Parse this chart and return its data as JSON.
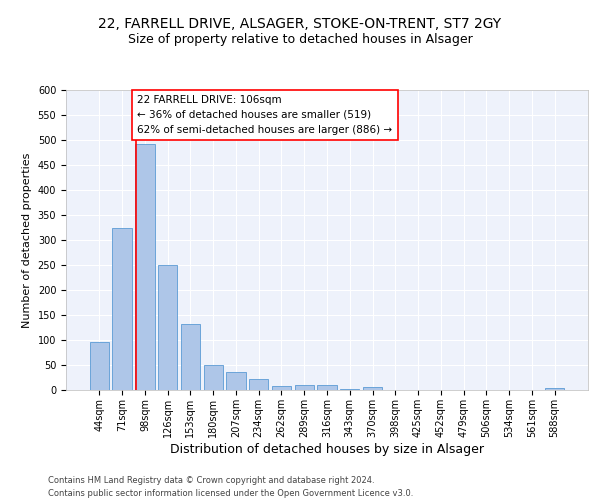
{
  "title1": "22, FARRELL DRIVE, ALSAGER, STOKE-ON-TRENT, ST7 2GY",
  "title2": "Size of property relative to detached houses in Alsager",
  "xlabel": "Distribution of detached houses by size in Alsager",
  "ylabel": "Number of detached properties",
  "footnote": "Contains HM Land Registry data © Crown copyright and database right 2024.\nContains public sector information licensed under the Open Government Licence v3.0.",
  "bar_labels": [
    "44sqm",
    "71sqm",
    "98sqm",
    "126sqm",
    "153sqm",
    "180sqm",
    "207sqm",
    "234sqm",
    "262sqm",
    "289sqm",
    "316sqm",
    "343sqm",
    "370sqm",
    "398sqm",
    "425sqm",
    "452sqm",
    "479sqm",
    "506sqm",
    "534sqm",
    "561sqm",
    "588sqm"
  ],
  "bar_values": [
    97,
    325,
    493,
    250,
    133,
    51,
    36,
    22,
    9,
    10,
    10,
    2,
    6,
    0,
    0,
    0,
    0,
    0,
    0,
    0,
    5
  ],
  "bar_color": "#aec6e8",
  "bar_edgecolor": "#5b9bd5",
  "vline_color": "red",
  "annotation_text": "22 FARRELL DRIVE: 106sqm\n← 36% of detached houses are smaller (519)\n62% of semi-detached houses are larger (886) →",
  "annotation_box_color": "white",
  "annotation_box_edgecolor": "red",
  "ylim": [
    0,
    600
  ],
  "yticks": [
    0,
    50,
    100,
    150,
    200,
    250,
    300,
    350,
    400,
    450,
    500,
    550,
    600
  ],
  "background_color": "#eef2fb",
  "grid_color": "white",
  "title1_fontsize": 10,
  "title2_fontsize": 9,
  "xlabel_fontsize": 9,
  "ylabel_fontsize": 8,
  "tick_fontsize": 7,
  "annotation_fontsize": 7.5,
  "footnote_fontsize": 6
}
